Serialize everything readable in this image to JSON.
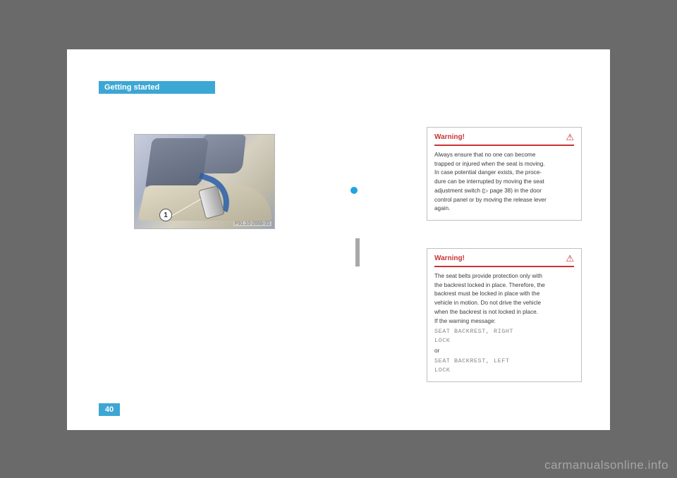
{
  "header": {
    "section_title": "Getting started"
  },
  "page_number": "40",
  "image": {
    "callout_num": "1",
    "ref_label": "P91.10-2668-31"
  },
  "warnings": [
    {
      "title": "Warning!",
      "body_lines": [
        "Always ensure that no one can become",
        "trapped or injured when the seat is moving.",
        "In case potential danger exists, the proce-",
        "dure can be interrupted by moving the seat",
        "adjustment switch (▷ page 38) in the door",
        "control panel or by moving the release lever",
        "again."
      ]
    },
    {
      "title": "Warning!",
      "body_lines": [
        "The seat belts provide protection only with",
        "the backrest locked in place. Therefore, the",
        "backrest must be locked in place with the",
        "vehicle in motion. Do not drive the vehicle",
        "when the backrest is not locked in place.",
        "If the warning message:"
      ],
      "mono_blocks": [
        [
          "SEAT BACKREST, RIGHT",
          "LOCK"
        ],
        [
          "SEAT BACKREST, LEFT",
          "LOCK"
        ]
      ],
      "or_text": "or"
    }
  ],
  "watermark": "carmanualsonline.info"
}
